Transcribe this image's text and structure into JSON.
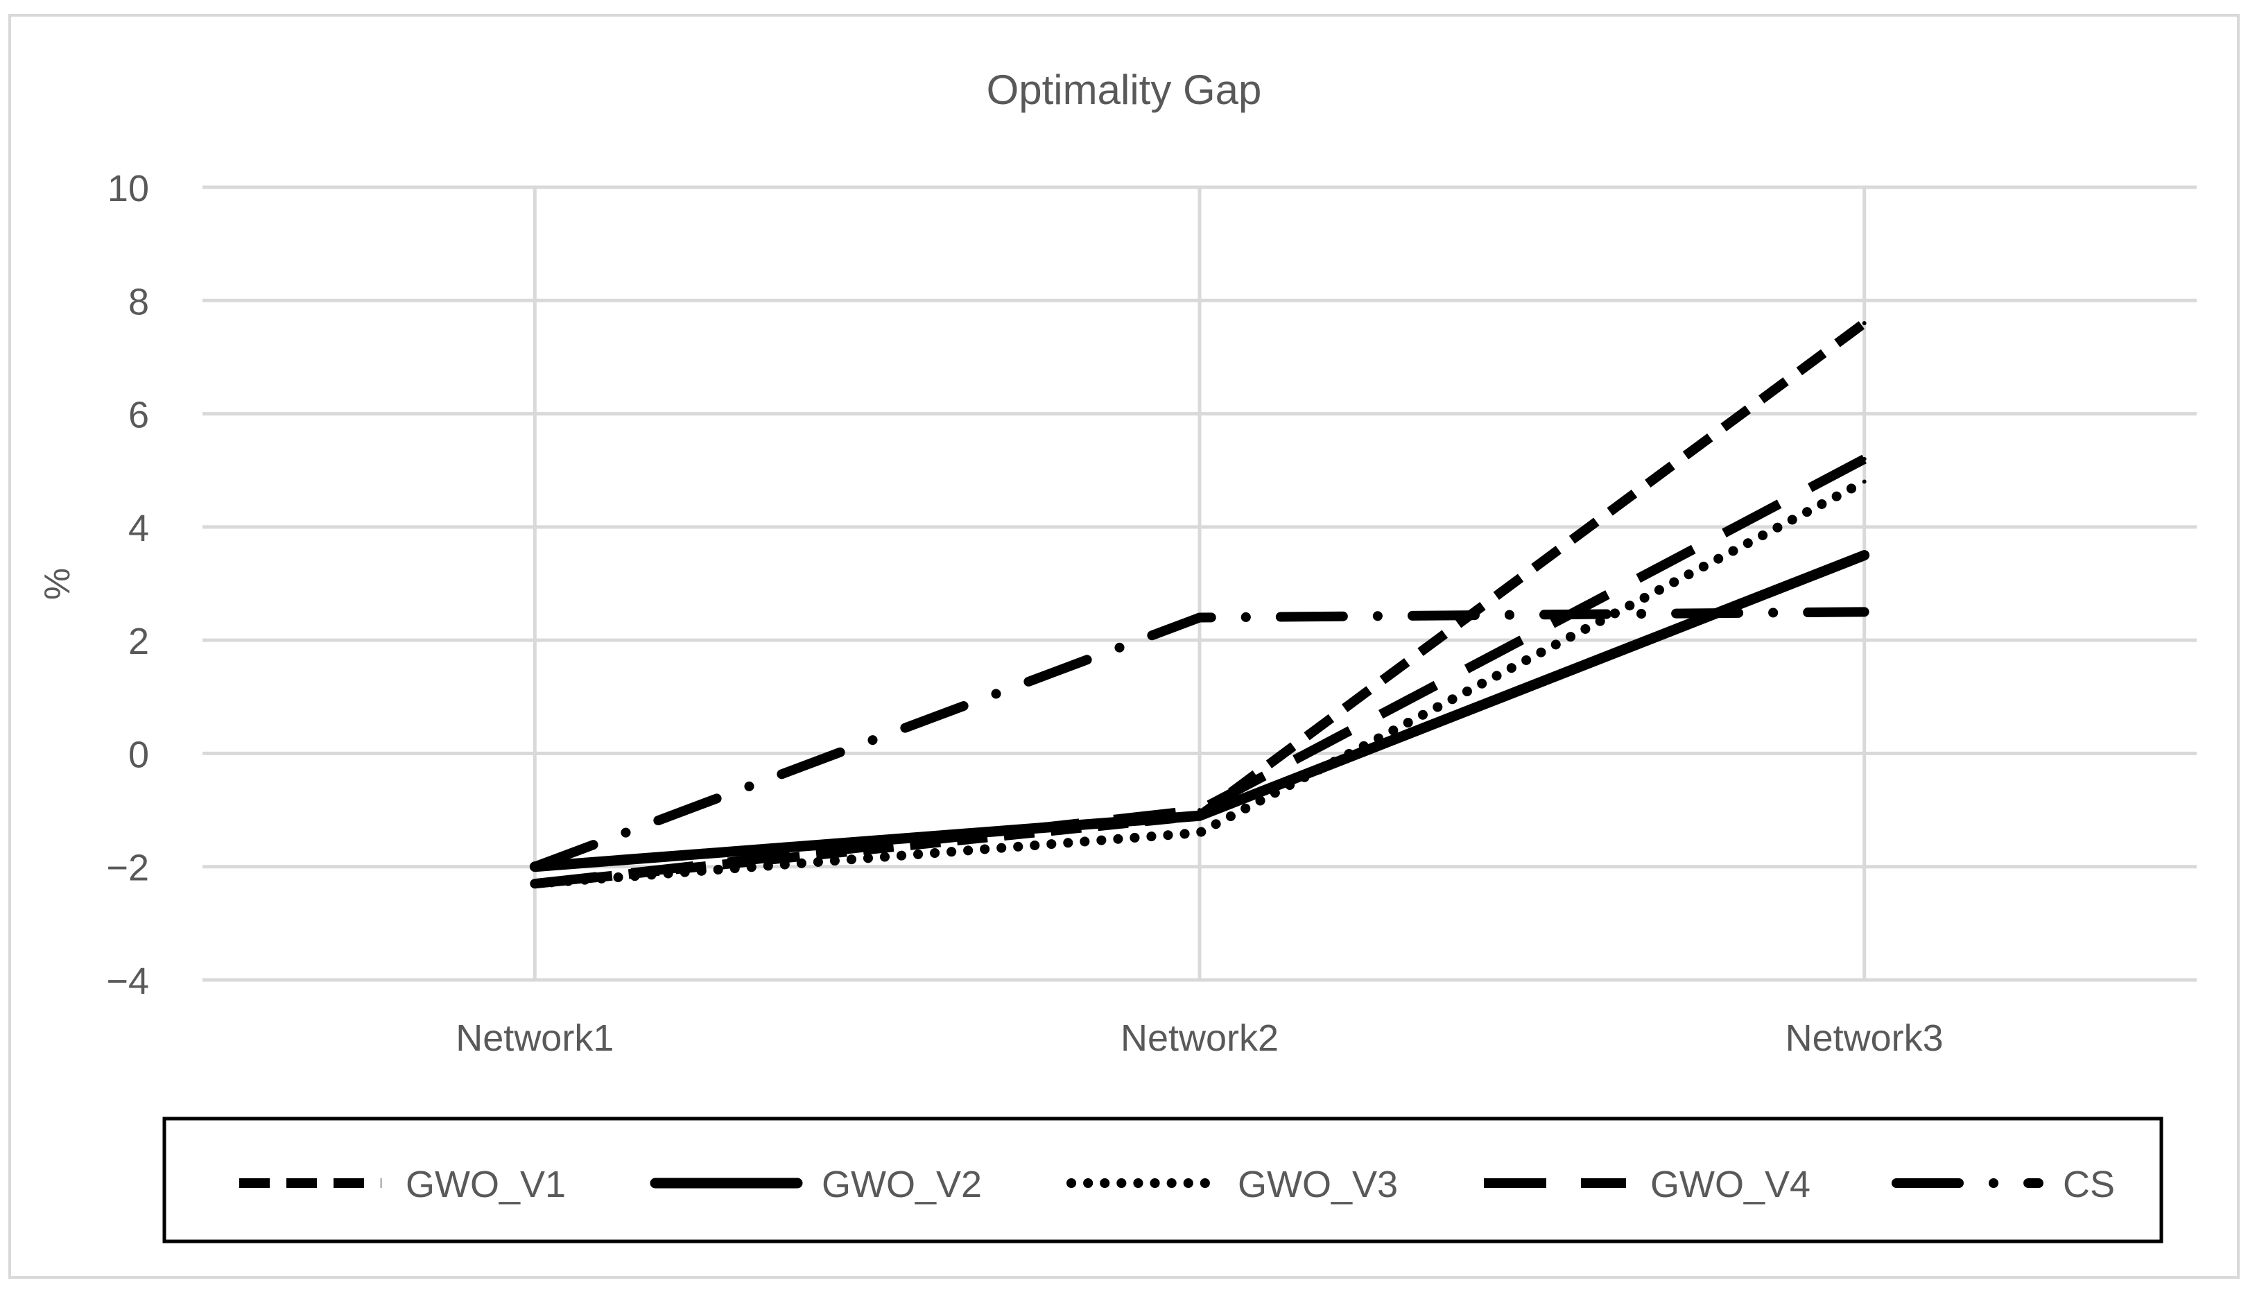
{
  "chart_data": {
    "type": "line",
    "title": "Optimality Gap",
    "xlabel": "",
    "ylabel": "%",
    "categories": [
      "Network1",
      "Network2",
      "Network3"
    ],
    "ylim": [
      -4,
      10
    ],
    "yticks": [
      -4,
      -2,
      0,
      2,
      4,
      6,
      8,
      10
    ],
    "ytick_labels": [
      "−4",
      "−2",
      "0",
      "2",
      "4",
      "6",
      "8",
      "10"
    ],
    "grid": true,
    "legend_position": "bottom",
    "series": [
      {
        "name": "GWO_V1",
        "values": [
          -2.3,
          -1.1,
          7.6
        ],
        "dash": "dashed"
      },
      {
        "name": "GWO_V2",
        "values": [
          -2.0,
          -1.1,
          3.5
        ],
        "dash": "solid"
      },
      {
        "name": "GWO_V3",
        "values": [
          -2.3,
          -1.4,
          4.8
        ],
        "dash": "dotted"
      },
      {
        "name": "GWO_V4",
        "values": [
          -2.3,
          -1.0,
          5.2
        ],
        "dash": "longdash"
      },
      {
        "name": "CS",
        "values": [
          -2.0,
          2.4,
          2.5
        ],
        "dash": "dashdot"
      }
    ]
  }
}
